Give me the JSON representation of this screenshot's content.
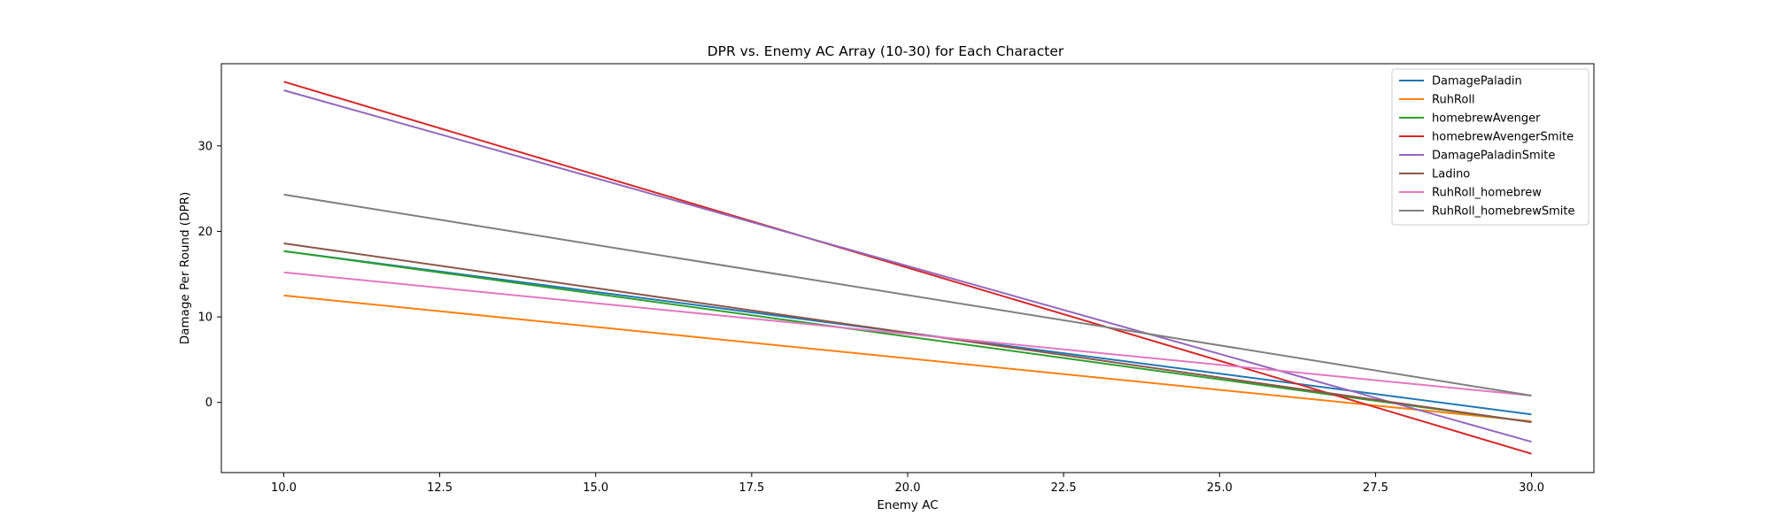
{
  "chart_data": {
    "type": "line",
    "title": "DPR vs. Enemy AC Array (10-30) for Each Character",
    "xlabel": "Enemy AC",
    "ylabel": "Damage Per Round (DPR)",
    "xlim": [
      9.0,
      31.0
    ],
    "ylim": [
      -8.2,
      39.6
    ],
    "xticks": [
      10.0,
      12.5,
      15.0,
      17.5,
      20.0,
      22.5,
      25.0,
      27.5,
      30.0
    ],
    "xtick_labels": [
      "10.0",
      "12.5",
      "15.0",
      "17.5",
      "20.0",
      "22.5",
      "25.0",
      "27.5",
      "30.0"
    ],
    "yticks": [
      0,
      10,
      20,
      30
    ],
    "ytick_labels": [
      "0",
      "10",
      "20",
      "30"
    ],
    "grid": false,
    "legend_position": "top-right",
    "x": [
      10,
      30
    ],
    "series": [
      {
        "name": "DamagePaladin",
        "color": "#1f77b4",
        "values": [
          17.7,
          -1.4
        ]
      },
      {
        "name": "RuhRoll",
        "color": "#ff7f0e",
        "values": [
          12.5,
          -2.2
        ]
      },
      {
        "name": "homebrewAvenger",
        "color": "#2ca02c",
        "values": [
          17.7,
          -2.3
        ]
      },
      {
        "name": "homebrewAvengerSmite",
        "color": "#d62728",
        "values": [
          37.5,
          -6.0
        ]
      },
      {
        "name": "DamagePaladinSmite",
        "color": "#9467bd",
        "values": [
          36.5,
          -4.6
        ]
      },
      {
        "name": "Ladino",
        "color": "#8c564b",
        "values": [
          18.6,
          -2.3
        ]
      },
      {
        "name": "RuhRoll_homebrew",
        "color": "#e377c2",
        "values": [
          15.2,
          0.8
        ]
      },
      {
        "name": "RuhRoll_homebrewSmite",
        "color": "#7f7f7f",
        "values": [
          24.3,
          0.8
        ]
      }
    ]
  }
}
